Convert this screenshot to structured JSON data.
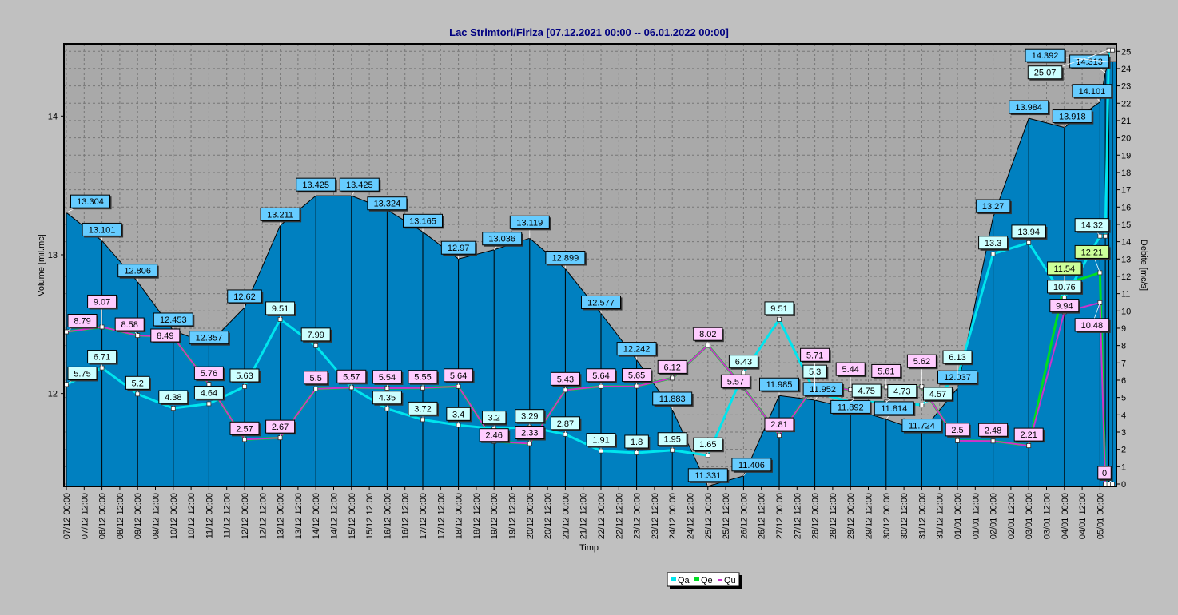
{
  "chart_data": {
    "type": "line",
    "title": "Lac Strimtori/Firiza [07.12.2021 00:00 -- 06.01.2022 00:00]",
    "xlabel": "Timp",
    "ylabel_left": "Volume [mil.mc]",
    "ylabel_right": "Debite [mc/s]",
    "ylim_left": [
      11.33,
      14.52
    ],
    "ylim_right": [
      0,
      25.4
    ],
    "yticks_left": [
      12,
      13,
      14
    ],
    "yticks_right": [
      0,
      1,
      2,
      3,
      4,
      5,
      6,
      7,
      8,
      9,
      10,
      11,
      12,
      13,
      14,
      15,
      16,
      17,
      18,
      19,
      20,
      21,
      22,
      23,
      24,
      25
    ],
    "grid": true,
    "legend_position": "bottom-center",
    "x_tick_labels": [
      "07/12 00:00",
      "07/12 12:00",
      "08/12 00:00",
      "08/12 12:00",
      "09/12 00:00",
      "09/12 12:00",
      "10/12 00:00",
      "10/12 12:00",
      "11/12 00:00",
      "11/12 12:00",
      "12/12 00:00",
      "12/12 12:00",
      "13/12 00:00",
      "13/12 12:00",
      "14/12 00:00",
      "14/12 12:00",
      "15/12 00:00",
      "15/12 12:00",
      "16/12 00:00",
      "16/12 12:00",
      "17/12 00:00",
      "17/12 12:00",
      "18/12 00:00",
      "18/12 12:00",
      "19/12 00:00",
      "19/12 12:00",
      "20/12 00:00",
      "20/12 12:00",
      "21/12 00:00",
      "21/12 12:00",
      "22/12 00:00",
      "22/12 12:00",
      "23/12 00:00",
      "23/12 12:00",
      "24/12 00:00",
      "24/12 12:00",
      "25/12 00:00",
      "25/12 12:00",
      "26/12 00:00",
      "26/12 12:00",
      "27/12 00:00",
      "27/12 12:00",
      "28/12 00:00",
      "28/12 12:00",
      "29/12 00:00",
      "29/12 12:00",
      "30/12 00:00",
      "30/12 12:00",
      "31/12 00:00",
      "31/12 12:00",
      "01/01 00:00",
      "01/01 12:00",
      "02/01 00:00",
      "02/01 12:00",
      "03/01 00:00",
      "03/01 12:00",
      "04/01 00:00",
      "04/01 12:00",
      "05/01 00:00"
    ],
    "x_days": [
      0,
      1,
      2,
      3,
      4,
      5,
      6,
      7,
      8,
      9,
      10,
      11,
      12,
      13,
      14,
      15,
      16,
      17,
      18,
      19,
      20,
      21,
      22,
      23,
      24,
      25,
      26,
      27,
      28,
      29,
      29.15,
      29.25,
      29.35
    ],
    "series": [
      {
        "name": "Volume",
        "axis": "left",
        "color": "#0080c0",
        "label_bg": "#66ccff",
        "values": [
          13.304,
          13.101,
          12.806,
          12.453,
          12.357,
          12.62,
          13.211,
          13.425,
          13.425,
          13.324,
          13.165,
          12.97,
          13.036,
          13.119,
          12.899,
          12.577,
          12.242,
          11.883,
          11.331,
          11.406,
          11.985,
          11.952,
          11.892,
          11.814,
          11.724,
          12.037,
          13.27,
          13.984,
          13.918,
          14.101,
          14.313,
          14.392,
          14.392
        ]
      },
      {
        "name": "Qa",
        "axis": "right",
        "color": "#00e5ee",
        "label_bg": "#ccffff",
        "values": [
          5.75,
          6.71,
          5.2,
          4.38,
          4.64,
          5.63,
          9.51,
          7.99,
          5.57,
          4.35,
          3.72,
          3.4,
          3.2,
          3.29,
          2.87,
          1.91,
          1.8,
          1.95,
          1.65,
          6.43,
          9.51,
          5.3,
          4.75,
          4.73,
          4.57,
          6.13,
          13.3,
          13.94,
          10.76,
          14.32,
          14.32,
          25.07,
          25.07
        ]
      },
      {
        "name": "Qe",
        "axis": "right",
        "color": "#00dd22",
        "label_bg": "#ccff99",
        "values": [
          8.79,
          9.07,
          8.58,
          8.49,
          5.76,
          2.57,
          2.67,
          5.5,
          5.57,
          5.54,
          5.55,
          5.64,
          2.46,
          2.33,
          5.43,
          5.64,
          5.65,
          6.12,
          8.02,
          5.57,
          2.81,
          5.71,
          5.44,
          5.61,
          5.62,
          2.5,
          2.48,
          2.21,
          11.54,
          12.21,
          0,
          0,
          0
        ]
      },
      {
        "name": "Qu",
        "axis": "right",
        "color": "#cc33cc",
        "label_bg": "#ffccff",
        "values": [
          8.79,
          9.07,
          8.58,
          8.49,
          5.76,
          2.57,
          2.67,
          5.5,
          5.57,
          5.54,
          5.55,
          5.64,
          2.46,
          2.33,
          5.43,
          5.64,
          5.65,
          6.12,
          8.02,
          5.57,
          2.81,
          5.71,
          5.44,
          5.61,
          5.62,
          2.5,
          2.48,
          2.21,
          9.94,
          10.48,
          0,
          0,
          0
        ]
      }
    ],
    "label_flags": {
      "Volume": [
        1,
        1,
        1,
        1,
        1,
        1,
        1,
        1,
        1,
        1,
        1,
        1,
        1,
        1,
        1,
        1,
        1,
        1,
        1,
        1,
        1,
        1,
        1,
        1,
        1,
        1,
        1,
        1,
        1,
        1,
        1,
        1,
        0
      ],
      "Qa": [
        1,
        1,
        1,
        1,
        1,
        1,
        1,
        1,
        0,
        1,
        1,
        1,
        1,
        1,
        1,
        1,
        1,
        1,
        1,
        1,
        1,
        1,
        1,
        1,
        1,
        1,
        1,
        1,
        1,
        1,
        0,
        1,
        0
      ],
      "Qe": [
        0,
        0,
        0,
        0,
        0,
        0,
        0,
        0,
        0,
        0,
        0,
        0,
        0,
        0,
        0,
        0,
        0,
        0,
        0,
        0,
        0,
        0,
        0,
        0,
        0,
        0,
        0,
        0,
        1,
        1,
        0,
        0,
        0
      ],
      "Qu": [
        1,
        1,
        1,
        1,
        1,
        1,
        1,
        1,
        1,
        1,
        1,
        1,
        1,
        1,
        1,
        1,
        1,
        1,
        1,
        1,
        1,
        1,
        1,
        1,
        1,
        1,
        1,
        1,
        1,
        1,
        0,
        0,
        1
      ]
    }
  }
}
